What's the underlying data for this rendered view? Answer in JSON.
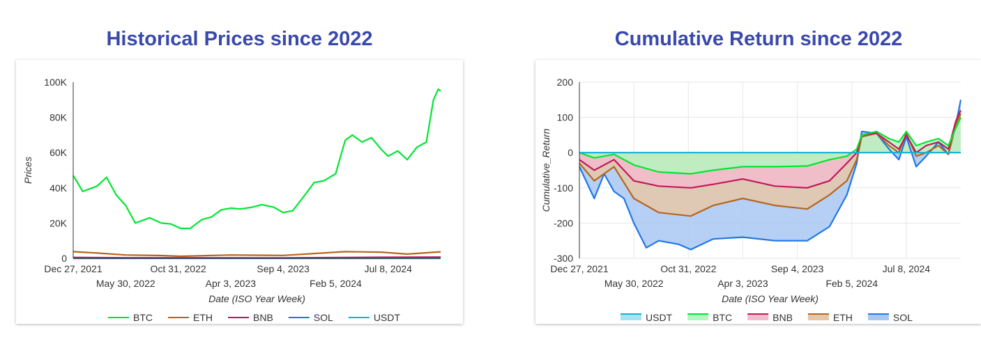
{
  "chart_data": [
    {
      "type": "line",
      "title": "Historical Prices since 2022",
      "xlabel": "Date (ISO Year Week)",
      "ylabel": "Prices",
      "ylim": [
        0,
        100000
      ],
      "yticks": [
        "0",
        "20K",
        "40K",
        "60K",
        "80K",
        "100K"
      ],
      "x_range": [
        "2021-12-27",
        "2024-12-09"
      ],
      "xticks_top": [
        "Dec 27, 2021",
        "Oct 31, 2022",
        "Sep 4, 2023",
        "Jul 8, 2024"
      ],
      "xticks_bottom": [
        "May 30, 2022",
        "Apr 3, 2023",
        "Feb 5, 2024"
      ],
      "grid": false,
      "legend_position": "bottom",
      "series": [
        {
          "name": "BTC",
          "color": "#00e632",
          "x": [
            "2021-12-27",
            "2022-01-24",
            "2022-03-07",
            "2022-04-04",
            "2022-05-02",
            "2022-05-30",
            "2022-06-27",
            "2022-08-08",
            "2022-09-12",
            "2022-10-10",
            "2022-11-07",
            "2022-12-05",
            "2023-01-09",
            "2023-02-06",
            "2023-03-06",
            "2023-04-03",
            "2023-05-01",
            "2023-06-05",
            "2023-07-03",
            "2023-08-07",
            "2023-09-04",
            "2023-10-02",
            "2023-10-30",
            "2023-12-04",
            "2024-01-01",
            "2024-02-05",
            "2024-03-04",
            "2024-03-25",
            "2024-04-22",
            "2024-05-20",
            "2024-06-17",
            "2024-07-08",
            "2024-08-05",
            "2024-09-02",
            "2024-09-30",
            "2024-10-28",
            "2024-11-18",
            "2024-12-02",
            "2024-12-09"
          ],
          "values": [
            47000,
            38000,
            41000,
            46000,
            36000,
            30000,
            20000,
            23000,
            20000,
            19500,
            17000,
            17000,
            22000,
            23500,
            27500,
            28500,
            28000,
            29000,
            30500,
            29000,
            26000,
            27000,
            34000,
            43000,
            44000,
            48000,
            67000,
            70000,
            66000,
            68500,
            62000,
            58000,
            61000,
            56000,
            63000,
            66000,
            90000,
            96000,
            95000
          ]
        },
        {
          "name": "ETH",
          "color": "#b5651d",
          "x": [
            "2021-12-27",
            "2022-03-07",
            "2022-05-30",
            "2022-09-12",
            "2022-11-07",
            "2023-04-03",
            "2023-09-04",
            "2024-03-04",
            "2024-06-17",
            "2024-09-02",
            "2024-12-09"
          ],
          "values": [
            3800,
            3000,
            1900,
            1600,
            1200,
            1900,
            1650,
            3800,
            3500,
            2400,
            3700
          ]
        },
        {
          "name": "BNB",
          "color": "#c2185b",
          "x": [
            "2021-12-27",
            "2022-05-30",
            "2023-09-04",
            "2024-06-17",
            "2024-12-09"
          ],
          "values": [
            530,
            320,
            220,
            600,
            720
          ]
        },
        {
          "name": "SOL",
          "color": "#1e77e8",
          "x": [
            "2021-12-27",
            "2022-05-30",
            "2023-09-04",
            "2024-03-04",
            "2024-12-09"
          ],
          "values": [
            180,
            45,
            20,
            190,
            240
          ]
        },
        {
          "name": "USDT",
          "color": "#11b3d6",
          "x": [
            "2021-12-27",
            "2024-12-09"
          ],
          "values": [
            1,
            1
          ]
        }
      ]
    },
    {
      "type": "area",
      "title": "Cumulative Return since 2022",
      "xlabel": "Date (ISO Year Week)",
      "ylabel": "Cumulative_Return",
      "ylim": [
        -300,
        200
      ],
      "yticks": [
        "-300",
        "-200",
        "-100",
        "0",
        "100",
        "200"
      ],
      "x_range": [
        "2021-12-27",
        "2024-12-09"
      ],
      "xticks_top": [
        "Dec 27, 2021",
        "Oct 31, 2022",
        "Sep 4, 2023",
        "Jul 8, 2024"
      ],
      "xticks_bottom": [
        "May 30, 2022",
        "Apr 3, 2023",
        "Feb 5, 2024"
      ],
      "grid": true,
      "legend_position": "bottom",
      "series": [
        {
          "name": "USDT",
          "color": "#11b3d6",
          "fill": "#a3e4f5",
          "x": [
            "2021-12-27",
            "2024-12-09"
          ],
          "values": [
            0,
            0
          ]
        },
        {
          "name": "BTC",
          "color": "#00e632",
          "fill": "#b6f5c0",
          "x": [
            "2021-12-27",
            "2022-02-07",
            "2022-04-04",
            "2022-05-30",
            "2022-08-08",
            "2022-11-07",
            "2023-01-09",
            "2023-04-03",
            "2023-07-03",
            "2023-10-02",
            "2023-12-04",
            "2024-01-22",
            "2024-02-19",
            "2024-03-04",
            "2024-04-15",
            "2024-05-20",
            "2024-06-17",
            "2024-07-08",
            "2024-08-05",
            "2024-09-02",
            "2024-10-07",
            "2024-11-04",
            "2024-11-25",
            "2024-12-09"
          ],
          "values": [
            0,
            -15,
            -5,
            -35,
            -55,
            -60,
            -50,
            -40,
            -40,
            -38,
            -20,
            -10,
            10,
            50,
            60,
            40,
            30,
            60,
            20,
            30,
            40,
            20,
            70,
            100
          ]
        },
        {
          "name": "BNB",
          "color": "#c2185b",
          "fill": "#f2bccd",
          "x": [
            "2021-12-27",
            "2022-02-07",
            "2022-04-04",
            "2022-05-30",
            "2022-08-08",
            "2022-11-07",
            "2023-01-09",
            "2023-04-03",
            "2023-07-03",
            "2023-10-02",
            "2023-12-04",
            "2024-01-22",
            "2024-02-19",
            "2024-03-04",
            "2024-04-15",
            "2024-05-20",
            "2024-06-17",
            "2024-07-08",
            "2024-08-05",
            "2024-09-02",
            "2024-10-07",
            "2024-11-04",
            "2024-11-25",
            "2024-12-09"
          ],
          "values": [
            -20,
            -50,
            -20,
            -80,
            -95,
            -100,
            -90,
            -75,
            -95,
            -100,
            -80,
            -30,
            0,
            50,
            55,
            30,
            10,
            50,
            0,
            20,
            30,
            10,
            90,
            120
          ]
        },
        {
          "name": "ETH",
          "color": "#b5651d",
          "fill": "#e6c7a8",
          "x": [
            "2021-12-27",
            "2022-02-07",
            "2022-04-04",
            "2022-05-30",
            "2022-08-08",
            "2022-11-07",
            "2023-01-09",
            "2023-04-03",
            "2023-07-03",
            "2023-10-02",
            "2023-12-04",
            "2024-01-22",
            "2024-02-19",
            "2024-03-04",
            "2024-04-15",
            "2024-05-20",
            "2024-06-17",
            "2024-07-08",
            "2024-08-05",
            "2024-09-02",
            "2024-10-07",
            "2024-11-04",
            "2024-11-25",
            "2024-12-09"
          ],
          "values": [
            -30,
            -80,
            -40,
            -130,
            -170,
            -180,
            -150,
            -130,
            -150,
            -160,
            -120,
            -80,
            -20,
            45,
            55,
            20,
            0,
            55,
            -10,
            0,
            20,
            -5,
            80,
            110
          ]
        },
        {
          "name": "SOL",
          "color": "#1e77e8",
          "fill": "#a9c7f2",
          "x": [
            "2021-12-27",
            "2022-02-07",
            "2022-03-07",
            "2022-04-04",
            "2022-05-02",
            "2022-05-30",
            "2022-07-04",
            "2022-08-08",
            "2022-10-03",
            "2022-11-07",
            "2023-01-09",
            "2023-04-03",
            "2023-07-03",
            "2023-10-02",
            "2023-12-04",
            "2024-01-22",
            "2024-02-19",
            "2024-03-04",
            "2024-04-15",
            "2024-05-20",
            "2024-06-17",
            "2024-07-08",
            "2024-08-05",
            "2024-09-02",
            "2024-10-07",
            "2024-11-04",
            "2024-11-25",
            "2024-12-09"
          ],
          "values": [
            -40,
            -130,
            -60,
            -110,
            -130,
            -200,
            -270,
            -250,
            -260,
            -275,
            -245,
            -240,
            -250,
            -250,
            -210,
            -120,
            -30,
            60,
            55,
            10,
            -20,
            45,
            -40,
            -10,
            30,
            -5,
            80,
            150
          ]
        }
      ]
    }
  ]
}
